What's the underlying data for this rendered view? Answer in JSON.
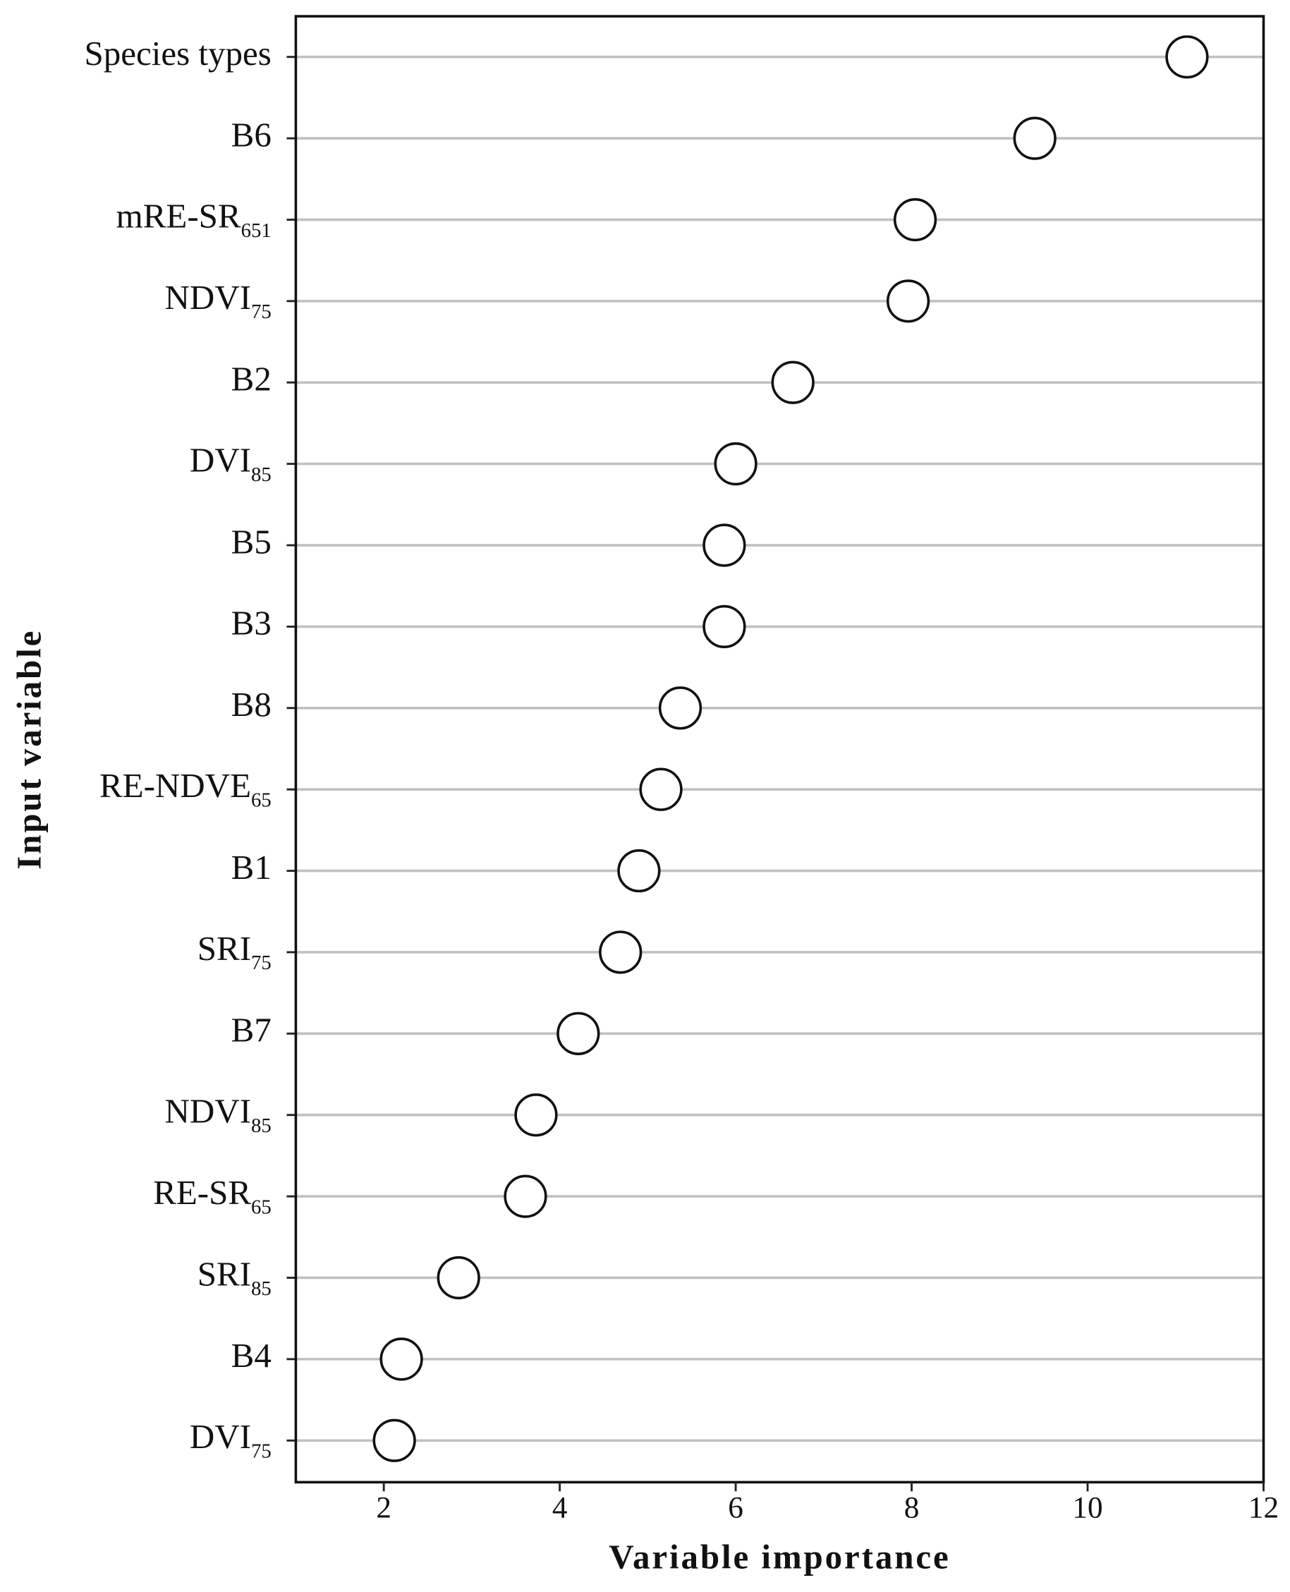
{
  "chart_data": {
    "type": "dot",
    "x_label": "Variable importance",
    "y_label": "Input variable",
    "categories": [
      "Species types",
      "B6",
      [
        "mRE-SR",
        "651"
      ],
      [
        "NDVI",
        "75"
      ],
      "B2",
      [
        "DVI",
        "85"
      ],
      "B5",
      "B3",
      "B8",
      [
        "RE-NDVE",
        "65"
      ],
      "B1",
      [
        "SRI",
        "75"
      ],
      "B7",
      [
        "NDVI",
        "85"
      ],
      [
        "RE-SR",
        "65"
      ],
      [
        "SRI",
        "85"
      ],
      "B4",
      [
        "DVI",
        "75"
      ]
    ],
    "values": [
      11.13,
      9.4,
      8.04,
      7.96,
      6.65,
      6.0,
      5.87,
      5.87,
      5.37,
      5.15,
      4.9,
      4.69,
      4.21,
      3.73,
      3.61,
      2.85,
      2.2,
      2.12
    ],
    "color": "#ffffff",
    "xlim": [
      1,
      12
    ],
    "xticks": [
      2,
      4,
      6,
      8,
      10,
      12
    ],
    "grid": true
  }
}
